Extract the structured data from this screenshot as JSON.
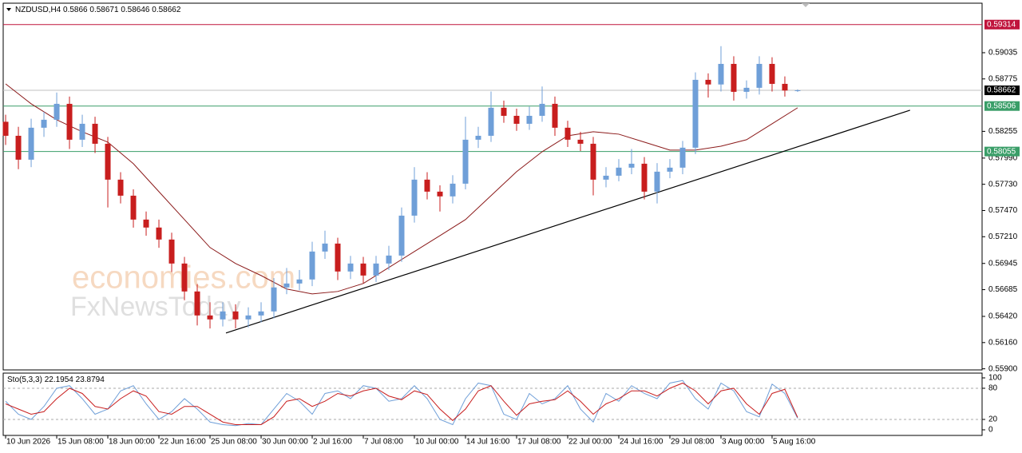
{
  "chart_data": {
    "type": "candlestick",
    "symbol": "NZDUSD,H4",
    "xlim": [
      -0.19,
      76.44
    ],
    "ylim": [
      0.55889,
      0.59526
    ],
    "up_color": "#6f9fd8",
    "down_color": "#c81e1e",
    "candles": [
      [
        0.5835,
        0.5842,
        0.5812,
        0.58211
      ],
      [
        0.58211,
        0.583,
        0.5788,
        0.57974
      ],
      [
        0.57974,
        0.5838,
        0.579,
        0.58291
      ],
      [
        0.58291,
        0.5845,
        0.582,
        0.5837
      ],
      [
        0.5837,
        0.5864,
        0.583,
        0.58528
      ],
      [
        0.58528,
        0.586,
        0.5808,
        0.58172
      ],
      [
        0.58172,
        0.5842,
        0.581,
        0.5833
      ],
      [
        0.5833,
        0.584,
        0.5804,
        0.58132
      ],
      [
        0.58132,
        0.582,
        0.575,
        0.57776
      ],
      [
        0.57776,
        0.5785,
        0.5754,
        0.57617
      ],
      [
        0.57617,
        0.5768,
        0.573,
        0.5738
      ],
      [
        0.5738,
        0.5746,
        0.5722,
        0.57301
      ],
      [
        0.57301,
        0.5738,
        0.571,
        0.57182
      ],
      [
        0.57182,
        0.5725,
        0.5686,
        0.56944
      ],
      [
        0.56944,
        0.5701,
        0.5658,
        0.56667
      ],
      [
        0.56667,
        0.5674,
        0.5633,
        0.56429
      ],
      [
        0.56429,
        0.5656,
        0.563,
        0.5639
      ],
      [
        0.5639,
        0.5656,
        0.5632,
        0.56469
      ],
      [
        0.56469,
        0.5654,
        0.563,
        0.5639
      ],
      [
        0.5639,
        0.5651,
        0.5631,
        0.56429
      ],
      [
        0.56429,
        0.5656,
        0.5636,
        0.56469
      ],
      [
        0.56469,
        0.568,
        0.564,
        0.56707
      ],
      [
        0.56707,
        0.569,
        0.5664,
        0.56746
      ],
      [
        0.56746,
        0.5688,
        0.5668,
        0.56786
      ],
      [
        0.56786,
        0.5716,
        0.5672,
        0.57063
      ],
      [
        0.57063,
        0.5727,
        0.5699,
        0.57142
      ],
      [
        0.57142,
        0.572,
        0.5678,
        0.56865
      ],
      [
        0.56865,
        0.5702,
        0.5679,
        0.56944
      ],
      [
        0.56944,
        0.5701,
        0.5675,
        0.56825
      ],
      [
        0.56825,
        0.5702,
        0.5676,
        0.56944
      ],
      [
        0.56944,
        0.5712,
        0.5688,
        0.57023
      ],
      [
        0.57023,
        0.575,
        0.5696,
        0.57419
      ],
      [
        0.57419,
        0.579,
        0.5735,
        0.57776
      ],
      [
        0.57776,
        0.5785,
        0.5758,
        0.57657
      ],
      [
        0.57657,
        0.5772,
        0.5746,
        0.5761
      ],
      [
        0.5761,
        0.5782,
        0.5754,
        0.57736
      ],
      [
        0.57736,
        0.584,
        0.5768,
        0.58172
      ],
      [
        0.58172,
        0.583,
        0.5809,
        0.58211
      ],
      [
        0.58211,
        0.5865,
        0.5815,
        0.58489
      ],
      [
        0.58489,
        0.5856,
        0.5834,
        0.58409
      ],
      [
        0.58409,
        0.5848,
        0.5826,
        0.5833
      ],
      [
        0.5833,
        0.585,
        0.5827,
        0.58409
      ],
      [
        0.58409,
        0.587,
        0.5835,
        0.58528
      ],
      [
        0.58528,
        0.586,
        0.5821,
        0.58291
      ],
      [
        0.58291,
        0.5836,
        0.581,
        0.58172
      ],
      [
        0.58172,
        0.5825,
        0.5806,
        0.58132
      ],
      [
        0.58132,
        0.582,
        0.5762,
        0.57776
      ],
      [
        0.57776,
        0.579,
        0.577,
        0.57815
      ],
      [
        0.57815,
        0.5798,
        0.5776,
        0.57895
      ],
      [
        0.57895,
        0.5808,
        0.5783,
        0.57934
      ],
      [
        0.57934,
        0.58,
        0.5758,
        0.57657
      ],
      [
        0.57657,
        0.5794,
        0.5754,
        0.57855
      ],
      [
        0.57855,
        0.5798,
        0.5779,
        0.57895
      ],
      [
        0.57895,
        0.5816,
        0.5783,
        0.58093
      ],
      [
        0.58093,
        0.5884,
        0.5803,
        0.58766
      ],
      [
        0.58766,
        0.5883,
        0.5859,
        0.5872
      ],
      [
        0.5872,
        0.591,
        0.5865,
        0.58924
      ],
      [
        0.58924,
        0.59,
        0.5856,
        0.58647
      ],
      [
        0.58647,
        0.5876,
        0.5858,
        0.58687
      ],
      [
        0.58687,
        0.59,
        0.5862,
        0.58924
      ],
      [
        0.58924,
        0.5899,
        0.5865,
        0.58726
      ],
      [
        0.58726,
        0.588,
        0.586,
        0.5866
      ],
      [
        0.5866,
        0.58671,
        0.58646,
        0.58662
      ]
    ],
    "ma": {
      "color": "#8b1a1a",
      "x": [
        0,
        2,
        4,
        6,
        8,
        10,
        12,
        14,
        16,
        18,
        20,
        22,
        24,
        26,
        28,
        30,
        32,
        34,
        36,
        38,
        40,
        42,
        44,
        46,
        48,
        50,
        52,
        54,
        56,
        58,
        60,
        62
      ],
      "values": [
        0.58726,
        0.58528,
        0.5837,
        0.58251,
        0.58148,
        0.57934,
        0.57657,
        0.5738,
        0.57103,
        0.56944,
        0.56825,
        0.56691,
        0.56643,
        0.56667,
        0.56746,
        0.56905,
        0.57063,
        0.57221,
        0.5738,
        0.57617,
        0.57855,
        0.58053,
        0.58211,
        0.58251,
        0.58227,
        0.58148,
        0.58069,
        0.58069,
        0.58108,
        0.58172,
        0.5833,
        0.58489
      ]
    },
    "trendline": {
      "x": [
        17.25,
        70.8
      ],
      "y": [
        0.56255,
        0.58465
      ]
    },
    "levels": [
      {
        "value": 0.59314,
        "color": "#c0143c"
      },
      {
        "value": 0.58506,
        "color": "#3a9e68"
      },
      {
        "value": 0.58055,
        "color": "#3a9e68"
      }
    ],
    "yticks": [
      0.59035,
      0.58775,
      0.58255,
      {
        "value": 0.5799,
        "label": "0.57990"
      },
      {
        "value": 0.5773,
        "label": "0.57730"
      },
      {
        "value": 0.5747,
        "label": "0.57470"
      },
      {
        "value": 0.5721,
        "label": "0.57210"
      },
      0.56945,
      0.56685,
      {
        "value": 0.5642,
        "label": "0.56420"
      },
      {
        "value": 0.5616,
        "label": "0.56160"
      },
      {
        "value": 0.559,
        "label": "0.55900"
      }
    ],
    "xticks": [
      {
        "value": 0,
        "label": "10 Jun 2026"
      },
      {
        "value": 4,
        "label": "15 Jun 08:00"
      },
      {
        "value": 8,
        "label": "18 Jun 00:00"
      },
      {
        "value": 12,
        "label": "22 Jun 16:00"
      },
      {
        "value": 16,
        "label": "25 Jun 08:00"
      },
      {
        "value": 20,
        "label": "30 Jun 00:00"
      },
      {
        "value": 24,
        "label": "2 Jul 16:00"
      },
      {
        "value": 28,
        "label": "7 Jul 08:00"
      },
      {
        "value": 32,
        "label": "10 Jul 00:00"
      },
      {
        "value": 36,
        "label": "14 Jul 16:00"
      },
      {
        "value": 40,
        "label": "17 Jul 08:00"
      },
      {
        "value": 44,
        "label": "22 Jul 00:00"
      },
      {
        "value": 48,
        "label": "24 Jul 16:00"
      },
      {
        "value": 52,
        "label": "29 Jul 08:00"
      },
      {
        "value": 56,
        "label": "3 Aug 00:00"
      },
      {
        "value": 60,
        "label": "5 Aug 16:00"
      }
    ],
    "stochastic": {
      "name": "Sto(5,3,3)",
      "ylim": [
        -10.8,
        109.2
      ],
      "yticks": [
        100,
        80,
        20,
        0
      ],
      "levels": [
        80,
        20
      ],
      "series": [
        {
          "color": "#6f9fd8",
          "values": [
            55,
            30,
            20,
            45,
            80,
            85,
            60,
            30,
            40,
            75,
            85,
            50,
            20,
            35,
            60,
            40,
            15,
            10,
            8,
            12,
            10,
            40,
            70,
            55,
            30,
            70,
            75,
            60,
            85,
            80,
            55,
            60,
            85,
            60,
            20,
            10,
            60,
            90,
            85,
            30,
            20,
            70,
            50,
            60,
            85,
            40,
            15,
            70,
            55,
            85,
            70,
            60,
            90,
            95,
            60,
            40,
            90,
            75,
            35,
            25,
            88,
            70,
            22.1954
          ]
        },
        {
          "color": "#c81e1e",
          "values": [
            50,
            40,
            30,
            35,
            60,
            80,
            70,
            45,
            40,
            60,
            75,
            65,
            35,
            30,
            45,
            45,
            30,
            15,
            10,
            10,
            10,
            25,
            55,
            60,
            45,
            55,
            70,
            65,
            75,
            80,
            65,
            58,
            75,
            68,
            40,
            18,
            40,
            75,
            85,
            55,
            28,
            50,
            55,
            58,
            75,
            55,
            30,
            50,
            60,
            75,
            75,
            65,
            80,
            90,
            75,
            50,
            75,
            80,
            50,
            30,
            70,
            78,
            23.8794
          ]
        }
      ]
    },
    "watermark": [
      "economies.com",
      "FxNewsToday"
    ]
  }
}
